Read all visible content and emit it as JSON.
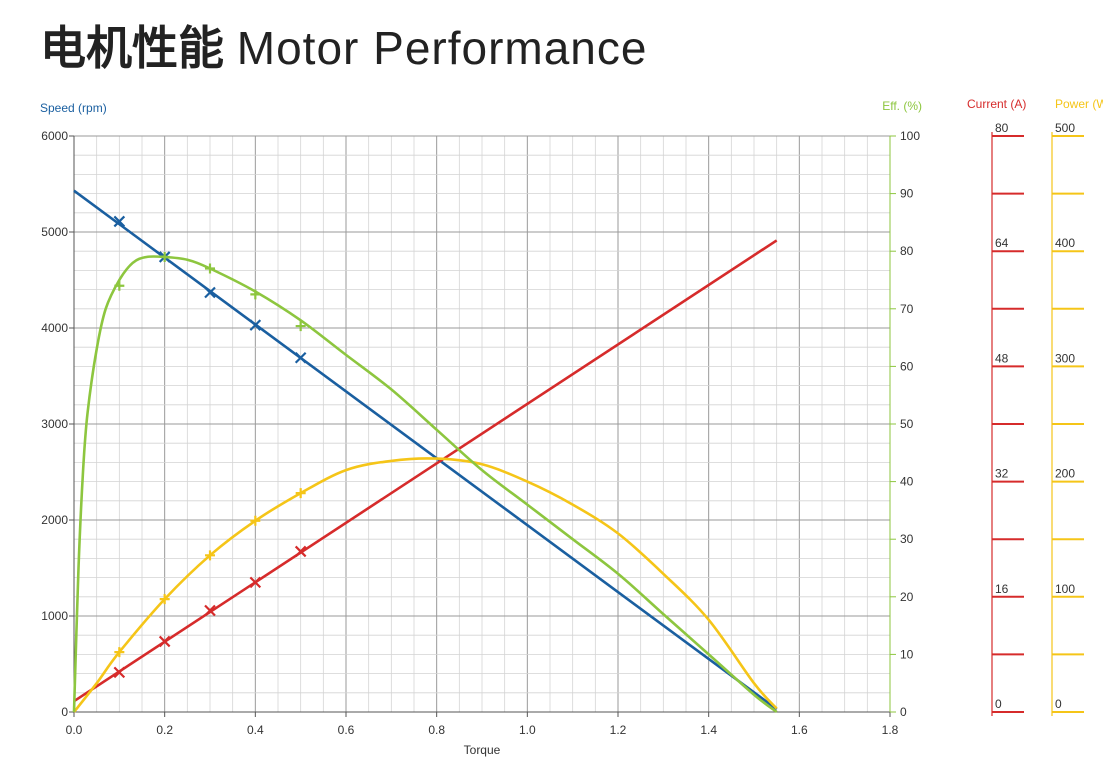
{
  "title": {
    "zh": "电机性能",
    "en": "Motor Performance"
  },
  "chart_data": {
    "type": "line",
    "xlabel": "Torque",
    "xlim": [
      0,
      1.8
    ],
    "x_ticks": [
      "0.0",
      "0.2",
      "0.4",
      "0.6",
      "0.8",
      "1.0",
      "1.2",
      "1.4",
      "1.6",
      "1.8"
    ],
    "grid": true,
    "axes": {
      "speed": {
        "label": "Speed (rpm)",
        "range": [
          0,
          6000
        ],
        "ticks": [
          "0",
          "1000",
          "2000",
          "3000",
          "4000",
          "5000",
          "6000"
        ],
        "color": "#1a5fa0"
      },
      "efficiency": {
        "label": "Eff. (%)",
        "range": [
          0,
          100
        ],
        "ticks": [
          "0",
          "10",
          "20",
          "30",
          "40",
          "50",
          "60",
          "70",
          "80",
          "90",
          "100"
        ],
        "color": "#8dc63f"
      },
      "current": {
        "label": "Current (A)",
        "range": [
          0,
          80
        ],
        "ticks": [
          "0",
          "16",
          "32",
          "48",
          "64",
          "80"
        ],
        "color": "#d62b2b"
      },
      "power": {
        "label": "Power (W)",
        "range": [
          0,
          500
        ],
        "ticks": [
          "0",
          "100",
          "200",
          "300",
          "400",
          "500"
        ],
        "color": "#f5c518"
      }
    },
    "series": [
      {
        "axis": "speed",
        "color": "#1a5fa0",
        "style": "line",
        "x": [
          0,
          1.55
        ],
        "y": [
          5430,
          30
        ],
        "markers": {
          "x": [
            0.1,
            0.2,
            0.3,
            0.4,
            0.5
          ],
          "y": [
            5110,
            4740,
            4370,
            4030,
            3690
          ]
        }
      },
      {
        "axis": "current",
        "color": "#d62b2b",
        "style": "line",
        "x": [
          0,
          1.55
        ],
        "y": [
          1.5,
          65.5
        ],
        "markers": {
          "x": [
            0.1,
            0.2,
            0.3,
            0.4,
            0.5
          ],
          "y": [
            5.5,
            9.8,
            14.1,
            18.0,
            22.3
          ]
        }
      },
      {
        "axis": "power",
        "color": "#f5c518",
        "style": "smooth",
        "x": [
          0,
          0.05,
          0.1,
          0.2,
          0.3,
          0.4,
          0.5,
          0.6,
          0.7,
          0.8,
          0.9,
          1.0,
          1.1,
          1.2,
          1.3,
          1.4,
          1.5,
          1.55
        ],
        "y": [
          0,
          25,
          52,
          98,
          136,
          166,
          190,
          210,
          218,
          220,
          215,
          200,
          180,
          155,
          120,
          80,
          25,
          3
        ],
        "markers": {
          "x": [
            0.1,
            0.2,
            0.3,
            0.4,
            0.5
          ],
          "y": [
            52,
            98,
            136,
            166,
            190
          ]
        }
      },
      {
        "axis": "efficiency",
        "color": "#8dc63f",
        "style": "smooth",
        "x": [
          0,
          0.01,
          0.02,
          0.03,
          0.05,
          0.07,
          0.1,
          0.13,
          0.16,
          0.2,
          0.25,
          0.3,
          0.4,
          0.5,
          0.6,
          0.7,
          0.8,
          0.9,
          1.0,
          1.1,
          1.2,
          1.3,
          1.4,
          1.5,
          1.55
        ],
        "y": [
          0,
          25,
          42,
          52,
          63,
          70,
          75,
          78,
          79,
          79,
          78.5,
          77,
          73,
          68,
          62,
          56,
          49,
          42,
          36,
          30,
          24,
          17,
          10,
          3,
          0
        ],
        "markers": {
          "x": [
            0.1,
            0.2,
            0.3,
            0.4,
            0.5
          ],
          "y": [
            74,
            79,
            77,
            72.5,
            67
          ]
        }
      }
    ]
  }
}
